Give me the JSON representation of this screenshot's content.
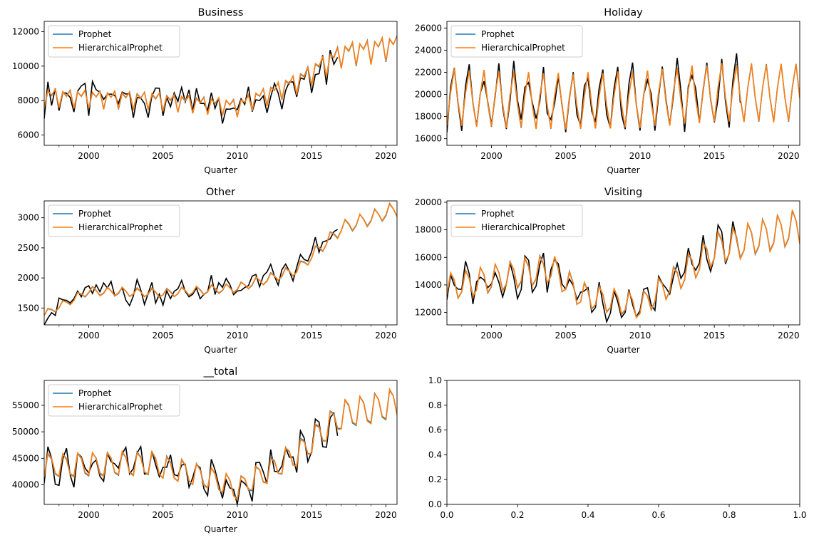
{
  "colors": {
    "actual": "#000000",
    "prophet": "#1f77b4",
    "hierarchical": "#ff7f0e"
  },
  "legend": [
    "Prophet",
    "HierarchicalProphet"
  ],
  "chart_data": [
    {
      "type": "line",
      "title": "Business",
      "xlabel": "Quarter",
      "xlim": [
        1997.0,
        2020.75
      ],
      "ylim": [
        5400,
        12600
      ],
      "yticks": [
        6000,
        8000,
        10000,
        12000
      ],
      "xticks": [
        2000,
        2005,
        2010,
        2015,
        2020
      ],
      "legend_position": "upper-left",
      "grid": false,
      "actual_end": 2016.75,
      "base": [
        7600,
        8550,
        8300,
        8650,
        8050
      ],
      "trend": [
        [
          1997,
          1.0
        ],
        [
          2004,
          0.98
        ],
        [
          2010,
          0.93
        ],
        [
          2014,
          1.1
        ],
        [
          2017,
          1.3
        ],
        [
          2020.75,
          1.36
        ]
      ],
      "series": [
        {
          "name": "Prophet",
          "color": "#1f77b4"
        },
        {
          "name": "HierarchicalProphet",
          "color": "#ff7f0e"
        }
      ]
    },
    {
      "type": "line",
      "title": "Holiday",
      "xlabel": "Quarter",
      "xlim": [
        1997.0,
        2020.75
      ],
      "ylim": [
        15400,
        26600
      ],
      "yticks": [
        16000,
        18000,
        20000,
        22000,
        24000,
        26000
      ],
      "xticks": [
        2000,
        2005,
        2010,
        2015,
        2020
      ],
      "legend_position": "upper-left",
      "grid": false,
      "actual_end": 2016.75,
      "base": [
        17200,
        20200,
        22300,
        19300,
        18000
      ],
      "trend": [
        [
          1997,
          1.0
        ],
        [
          2005,
          0.98
        ],
        [
          2010,
          0.99
        ],
        [
          2015,
          1.02
        ],
        [
          2020.75,
          1.02
        ]
      ],
      "series": [
        {
          "name": "Prophet",
          "color": "#1f77b4"
        },
        {
          "name": "HierarchicalProphet",
          "color": "#ff7f0e"
        }
      ]
    },
    {
      "type": "line",
      "title": "Other",
      "xlabel": "Quarter",
      "xlim": [
        1997.0,
        2020.75
      ],
      "ylim": [
        1220,
        3280
      ],
      "yticks": [
        1500,
        2000,
        2500,
        3000
      ],
      "xticks": [
        2000,
        2005,
        2010,
        2015,
        2020
      ],
      "legend_position": "upper-left",
      "grid": false,
      "actual_end": 2016.75,
      "base": [
        1720,
        1820,
        1760,
        1680,
        1740
      ],
      "trend": [
        [
          1997,
          0.8
        ],
        [
          2000,
          1.02
        ],
        [
          2005,
          1.0
        ],
        [
          2010,
          1.05
        ],
        [
          2014,
          1.22
        ],
        [
          2017,
          1.62
        ],
        [
          2020.75,
          1.8
        ]
      ],
      "series": [
        {
          "name": "Prophet",
          "color": "#1f77b4"
        },
        {
          "name": "HierarchicalProphet",
          "color": "#ff7f0e"
        }
      ]
    },
    {
      "type": "line",
      "title": "Visiting",
      "xlabel": "Quarter",
      "xlim": [
        1997.0,
        2020.75
      ],
      "ylim": [
        11100,
        20100
      ],
      "yticks": [
        12000,
        14000,
        16000,
        18000,
        20000
      ],
      "xticks": [
        2000,
        2005,
        2010,
        2015,
        2020
      ],
      "legend_position": "upper-left",
      "grid": false,
      "actual_end": 2016.75,
      "base": [
        13300,
        14800,
        14200,
        12900,
        13800
      ],
      "trend": [
        [
          1997,
          1.0
        ],
        [
          2004,
          1.1
        ],
        [
          2006,
          0.96
        ],
        [
          2010,
          0.9
        ],
        [
          2015,
          1.2
        ],
        [
          2020.75,
          1.32
        ]
      ],
      "series": [
        {
          "name": "Prophet",
          "color": "#1f77b4"
        },
        {
          "name": "HierarchicalProphet",
          "color": "#ff7f0e"
        }
      ]
    },
    {
      "type": "line",
      "title": "__total",
      "xlabel": "Quarter",
      "xlim": [
        1997.0,
        2020.75
      ],
      "ylim": [
        36300,
        59700
      ],
      "yticks": [
        40000,
        45000,
        50000,
        55000
      ],
      "xticks": [
        2000,
        2005,
        2010,
        2015,
        2020
      ],
      "legend_position": "upper-left",
      "grid": false,
      "actual_end": 2016.75,
      "base": [
        41500,
        45800,
        44800,
        42000,
        43500
      ],
      "trend": [
        [
          1997,
          1.0
        ],
        [
          2004,
          1.01
        ],
        [
          2008,
          0.95
        ],
        [
          2010,
          0.9
        ],
        [
          2014,
          1.05
        ],
        [
          2017,
          1.22
        ],
        [
          2020.75,
          1.27
        ]
      ],
      "series": [
        {
          "name": "Prophet",
          "color": "#1f77b4"
        },
        {
          "name": "HierarchicalProphet",
          "color": "#ff7f0e"
        }
      ]
    },
    {
      "type": "line",
      "title": "",
      "xlabel": "",
      "xlim": [
        0.0,
        1.0
      ],
      "ylim": [
        0.0,
        1.0
      ],
      "yticks": [
        0.0,
        0.2,
        0.4,
        0.6,
        0.8,
        1.0
      ],
      "xticks": [
        0.0,
        0.2,
        0.4,
        0.6,
        0.8,
        1.0
      ],
      "empty": true,
      "grid": false
    }
  ]
}
